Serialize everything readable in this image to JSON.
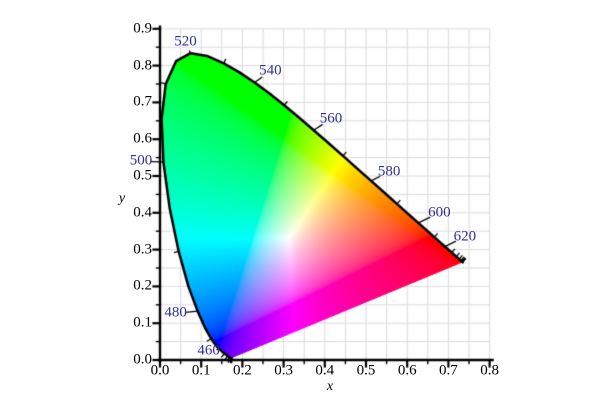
{
  "figure": {
    "background": "#ffffff",
    "description": "CIE 1931 xy chromaticity diagram"
  },
  "chart_data": {
    "type": "heatmap",
    "subtype": "cie-1931-chromaticity-diagram",
    "title": "",
    "xlabel": "x",
    "ylabel": "y",
    "xlim": [
      0.0,
      0.8
    ],
    "ylim": [
      0.0,
      0.9
    ],
    "x_major_tick_step": 0.1,
    "x_minor_tick_step": 0.05,
    "y_major_tick_step": 0.1,
    "y_minor_tick_step": 0.05,
    "xtick_labels": [
      "0.0",
      "0.1",
      "0.2",
      "0.3",
      "0.4",
      "0.5",
      "0.6",
      "0.7",
      "0.8"
    ],
    "ytick_labels": [
      "0.0",
      "0.1",
      "0.2",
      "0.3",
      "0.4",
      "0.5",
      "0.6",
      "0.7",
      "0.8",
      "0.9"
    ],
    "grid": {
      "on": true,
      "step": 0.05,
      "color": "#dadada"
    },
    "colors": {
      "axis": "#000000",
      "locus_outline": "#000000",
      "tick_label": "#000000",
      "wavelength_label": "#2e2e99"
    },
    "locus_tick_interval_nm": 10,
    "wavelength_labels": [
      {
        "text": "460",
        "locus_x": 0.144,
        "locus_y": 0.0297,
        "text_x": 0.118,
        "text_y": 0.024
      },
      {
        "text": "480",
        "locus_x": 0.0913,
        "locus_y": 0.1327,
        "text_x": 0.038,
        "text_y": 0.127
      },
      {
        "text": "500",
        "locus_x": 0.0082,
        "locus_y": 0.5384,
        "text_x": -0.046,
        "text_y": 0.54
      },
      {
        "text": "520",
        "locus_x": 0.0743,
        "locus_y": 0.8338,
        "text_x": 0.062,
        "text_y": 0.864
      },
      {
        "text": "540",
        "locus_x": 0.2296,
        "locus_y": 0.7543,
        "text_x": 0.268,
        "text_y": 0.785
      },
      {
        "text": "560",
        "locus_x": 0.3731,
        "locus_y": 0.6245,
        "text_x": 0.415,
        "text_y": 0.655
      },
      {
        "text": "580",
        "locus_x": 0.5125,
        "locus_y": 0.4866,
        "text_x": 0.556,
        "text_y": 0.512
      },
      {
        "text": "600",
        "locus_x": 0.627,
        "locus_y": 0.3725,
        "text_x": 0.678,
        "text_y": 0.4
      },
      {
        "text": "620",
        "locus_x": 0.6915,
        "locus_y": 0.3083,
        "text_x": 0.74,
        "text_y": 0.335
      }
    ],
    "spectral_locus": [
      [
        380,
        0.1741,
        0.005
      ],
      [
        385,
        0.174,
        0.005
      ],
      [
        390,
        0.1738,
        0.0049
      ],
      [
        395,
        0.1736,
        0.0049
      ],
      [
        400,
        0.1733,
        0.0048
      ],
      [
        405,
        0.173,
        0.0048
      ],
      [
        410,
        0.1726,
        0.0048
      ],
      [
        415,
        0.1721,
        0.0048
      ],
      [
        420,
        0.1714,
        0.0051
      ],
      [
        425,
        0.1703,
        0.0058
      ],
      [
        430,
        0.1689,
        0.0069
      ],
      [
        435,
        0.1669,
        0.0086
      ],
      [
        440,
        0.1644,
        0.0109
      ],
      [
        445,
        0.1611,
        0.0138
      ],
      [
        450,
        0.1566,
        0.0177
      ],
      [
        455,
        0.151,
        0.0227
      ],
      [
        460,
        0.144,
        0.0297
      ],
      [
        465,
        0.1355,
        0.0399
      ],
      [
        470,
        0.1241,
        0.0578
      ],
      [
        475,
        0.1096,
        0.0868
      ],
      [
        480,
        0.0913,
        0.1327
      ],
      [
        485,
        0.0687,
        0.2007
      ],
      [
        490,
        0.0454,
        0.295
      ],
      [
        495,
        0.0235,
        0.4127
      ],
      [
        500,
        0.0082,
        0.5384
      ],
      [
        505,
        0.0039,
        0.6548
      ],
      [
        510,
        0.0139,
        0.7502
      ],
      [
        515,
        0.0389,
        0.812
      ],
      [
        520,
        0.0743,
        0.8338
      ],
      [
        525,
        0.1142,
        0.8262
      ],
      [
        530,
        0.1547,
        0.8059
      ],
      [
        535,
        0.1929,
        0.7816
      ],
      [
        540,
        0.2296,
        0.7543
      ],
      [
        545,
        0.2658,
        0.7243
      ],
      [
        550,
        0.3016,
        0.6923
      ],
      [
        555,
        0.3373,
        0.6589
      ],
      [
        560,
        0.3731,
        0.6245
      ],
      [
        565,
        0.4087,
        0.5896
      ],
      [
        570,
        0.4441,
        0.5547
      ],
      [
        575,
        0.4788,
        0.5202
      ],
      [
        580,
        0.5125,
        0.4866
      ],
      [
        585,
        0.5448,
        0.4544
      ],
      [
        590,
        0.5752,
        0.4242
      ],
      [
        595,
        0.6029,
        0.3965
      ],
      [
        600,
        0.627,
        0.3725
      ],
      [
        605,
        0.6482,
        0.3514
      ],
      [
        610,
        0.6658,
        0.334
      ],
      [
        615,
        0.6801,
        0.3197
      ],
      [
        620,
        0.6915,
        0.3083
      ],
      [
        625,
        0.7006,
        0.2993
      ],
      [
        630,
        0.7079,
        0.292
      ],
      [
        635,
        0.714,
        0.2859
      ],
      [
        640,
        0.719,
        0.2809
      ],
      [
        645,
        0.723,
        0.277
      ],
      [
        650,
        0.726,
        0.274
      ],
      [
        655,
        0.7283,
        0.2717
      ],
      [
        660,
        0.73,
        0.27
      ],
      [
        665,
        0.7311,
        0.2689
      ],
      [
        670,
        0.732,
        0.268
      ],
      [
        675,
        0.7327,
        0.2673
      ],
      [
        680,
        0.7334,
        0.2666
      ],
      [
        685,
        0.734,
        0.266
      ],
      [
        690,
        0.7344,
        0.2656
      ],
      [
        695,
        0.7346,
        0.2654
      ],
      [
        700,
        0.7347,
        0.2653
      ]
    ]
  }
}
